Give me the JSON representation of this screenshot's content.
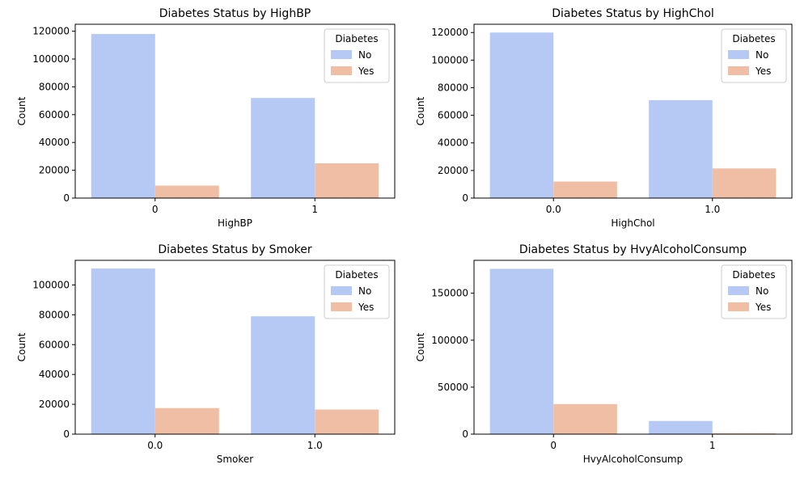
{
  "colors": {
    "No": "#b5c9f4",
    "Yes": "#efbea5"
  },
  "chart_data": [
    {
      "type": "bar",
      "title": "Diabetes Status by HighBP",
      "xlabel": "HighBP",
      "ylabel": "Count",
      "categories": [
        "0",
        "1"
      ],
      "series": [
        {
          "name": "No",
          "values": [
            118000,
            72000
          ]
        },
        {
          "name": "Yes",
          "values": [
            9000,
            25000
          ]
        }
      ],
      "ylim": [
        0,
        125000
      ],
      "yticks": [
        0,
        20000,
        40000,
        60000,
        80000,
        100000,
        120000
      ],
      "legend_title": "Diabetes",
      "legend_position": "top-right",
      "grid": false
    },
    {
      "type": "bar",
      "title": "Diabetes Status by HighChol",
      "xlabel": "HighChol",
      "ylabel": "Count",
      "categories": [
        "0.0",
        "1.0"
      ],
      "series": [
        {
          "name": "No",
          "values": [
            120000,
            71000
          ]
        },
        {
          "name": "Yes",
          "values": [
            12000,
            21500
          ]
        }
      ],
      "ylim": [
        0,
        126000
      ],
      "yticks": [
        0,
        20000,
        40000,
        60000,
        80000,
        100000,
        120000
      ],
      "legend_title": "Diabetes",
      "legend_position": "top-right",
      "grid": false
    },
    {
      "type": "bar",
      "title": "Diabetes Status by Smoker",
      "xlabel": "Smoker",
      "ylabel": "Count",
      "categories": [
        "0.0",
        "1.0"
      ],
      "series": [
        {
          "name": "No",
          "values": [
            111000,
            79000
          ]
        },
        {
          "name": "Yes",
          "values": [
            17500,
            16500
          ]
        }
      ],
      "ylim": [
        0,
        116500
      ],
      "yticks": [
        0,
        20000,
        40000,
        60000,
        80000,
        100000
      ],
      "legend_title": "Diabetes",
      "legend_position": "top-right",
      "grid": false
    },
    {
      "type": "bar",
      "title": "Diabetes Status by HvyAlcoholConsump",
      "xlabel": "HvyAlcoholConsump",
      "ylabel": "Count",
      "categories": [
        "0",
        "1"
      ],
      "series": [
        {
          "name": "No",
          "values": [
            176000,
            14000
          ]
        },
        {
          "name": "Yes",
          "values": [
            32000,
            900
          ]
        }
      ],
      "ylim": [
        0,
        185000
      ],
      "yticks": [
        0,
        50000,
        100000,
        150000
      ],
      "legend_title": "Diabetes",
      "legend_position": "top-right",
      "grid": false
    }
  ]
}
